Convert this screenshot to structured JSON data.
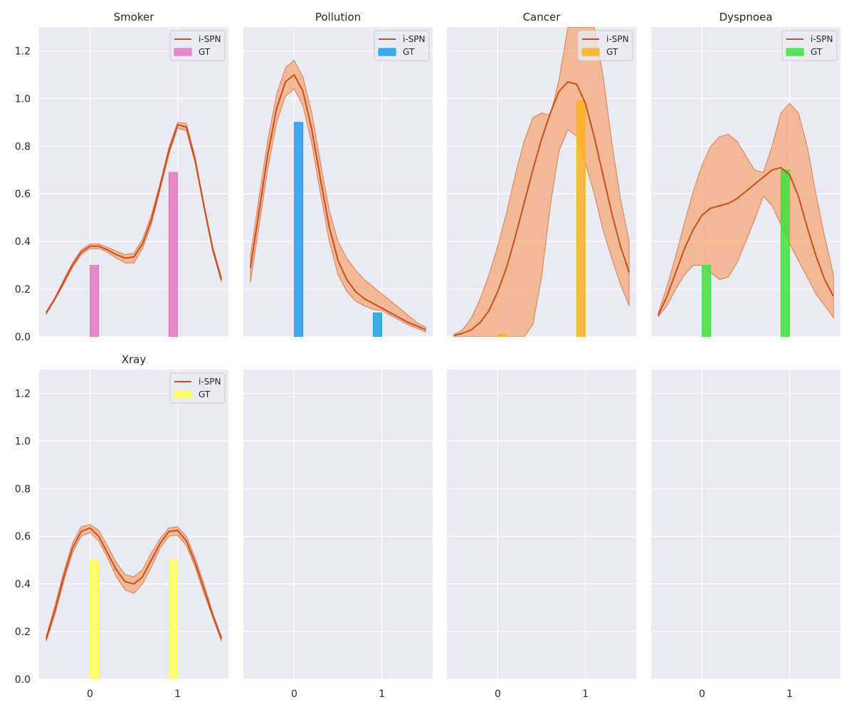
{
  "chart_data": {
    "type": "line",
    "layout": "2x4 grid, shared x and y axes",
    "xlim": [
      -0.58,
      1.58
    ],
    "ylim": [
      0,
      1.3
    ],
    "x_ticks": [
      0,
      1
    ],
    "x_tick_labels": [
      "0",
      "1"
    ],
    "y_ticks": [
      0,
      0.2,
      0.4,
      0.6,
      0.8,
      1.0,
      1.2
    ],
    "y_tick_labels": [
      "0.0",
      "0.2",
      "0.4",
      "0.6",
      "0.8",
      "1.0",
      "1.2"
    ],
    "grid": true,
    "legend_placement": "top-right",
    "line_color": "#cc4c1e",
    "band_color": "#f4a46e",
    "panels": [
      {
        "title": "Smoker",
        "series": [
          {
            "name": "i-SPN",
            "type": "line",
            "x": [
              -0.5,
              -0.4,
              -0.3,
              -0.2,
              -0.1,
              0.0,
              0.1,
              0.2,
              0.3,
              0.4,
              0.5,
              0.6,
              0.7,
              0.8,
              0.9,
              1.0,
              1.1,
              1.2,
              1.3,
              1.4,
              1.5
            ],
            "y": [
              0.1,
              0.16,
              0.23,
              0.3,
              0.355,
              0.38,
              0.38,
              0.365,
              0.345,
              0.33,
              0.335,
              0.39,
              0.49,
              0.63,
              0.78,
              0.89,
              0.88,
              0.74,
              0.55,
              0.37,
              0.24
            ],
            "lower": [
              0.095,
              0.155,
              0.22,
              0.29,
              0.345,
              0.37,
              0.37,
              0.355,
              0.33,
              0.31,
              0.31,
              0.37,
              0.47,
              0.615,
              0.765,
              0.875,
              0.865,
              0.73,
              0.54,
              0.36,
              0.23
            ],
            "upper": [
              0.105,
              0.165,
              0.24,
              0.31,
              0.365,
              0.39,
              0.39,
              0.375,
              0.36,
              0.345,
              0.35,
              0.41,
              0.51,
              0.645,
              0.795,
              0.9,
              0.895,
              0.755,
              0.56,
              0.38,
              0.25
            ]
          },
          {
            "name": "GT",
            "type": "bar",
            "color": "#e377c2",
            "x": [
              0.05,
              0.95
            ],
            "values": [
              0.3,
              0.69
            ]
          }
        ]
      },
      {
        "title": "Pollution",
        "series": [
          {
            "name": "i-SPN",
            "type": "line",
            "x": [
              -0.5,
              -0.4,
              -0.3,
              -0.2,
              -0.1,
              0.0,
              0.1,
              0.2,
              0.3,
              0.4,
              0.5,
              0.6,
              0.7,
              0.8,
              0.9,
              1.0,
              1.1,
              1.2,
              1.3,
              1.4,
              1.5
            ],
            "y": [
              0.29,
              0.53,
              0.77,
              0.96,
              1.07,
              1.1,
              1.03,
              0.87,
              0.66,
              0.46,
              0.32,
              0.24,
              0.19,
              0.16,
              0.14,
              0.12,
              0.1,
              0.08,
              0.06,
              0.045,
              0.03
            ],
            "lower": [
              0.23,
              0.47,
              0.71,
              0.9,
              1.01,
              1.04,
              0.97,
              0.81,
              0.6,
              0.4,
              0.26,
              0.19,
              0.15,
              0.13,
              0.115,
              0.11,
              0.09,
              0.07,
              0.05,
              0.035,
              0.02
            ],
            "upper": [
              0.34,
              0.59,
              0.83,
              1.02,
              1.13,
              1.16,
              1.09,
              0.94,
              0.73,
              0.53,
              0.4,
              0.33,
              0.28,
              0.24,
              0.21,
              0.18,
              0.15,
              0.12,
              0.09,
              0.06,
              0.04
            ]
          },
          {
            "name": "GT",
            "type": "bar",
            "color": "#1f9fe8",
            "x": [
              0.05,
              0.95
            ],
            "values": [
              0.9,
              0.1
            ]
          }
        ]
      },
      {
        "title": "Cancer",
        "series": [
          {
            "name": "i-SPN",
            "type": "line",
            "x": [
              -0.5,
              -0.4,
              -0.3,
              -0.2,
              -0.1,
              0.0,
              0.1,
              0.2,
              0.3,
              0.4,
              0.5,
              0.6,
              0.7,
              0.8,
              0.9,
              1.0,
              1.1,
              1.2,
              1.3,
              1.4,
              1.5
            ],
            "y": [
              0.005,
              0.015,
              0.03,
              0.06,
              0.11,
              0.19,
              0.29,
              0.42,
              0.56,
              0.7,
              0.83,
              0.94,
              1.03,
              1.07,
              1.06,
              0.98,
              0.84,
              0.68,
              0.52,
              0.38,
              0.27
            ],
            "lower": [
              0.0,
              0.0,
              0.0,
              0.0,
              0.0,
              0.0,
              0.0,
              0.0,
              0.0,
              0.05,
              0.25,
              0.55,
              0.78,
              0.87,
              0.84,
              0.73,
              0.6,
              0.45,
              0.33,
              0.22,
              0.13
            ],
            "upper": [
              0.01,
              0.03,
              0.08,
              0.16,
              0.26,
              0.38,
              0.52,
              0.68,
              0.82,
              0.92,
              0.94,
              0.93,
              1.08,
              1.3,
              1.3,
              1.3,
              1.3,
              1.1,
              0.82,
              0.58,
              0.4
            ]
          },
          {
            "name": "GT",
            "type": "bar",
            "color": "#ffb020",
            "x": [
              0.05,
              0.95
            ],
            "values": [
              0.01,
              0.99
            ]
          }
        ]
      },
      {
        "title": "Dyspnoea",
        "series": [
          {
            "name": "i-SPN",
            "type": "line",
            "x": [
              -0.5,
              -0.4,
              -0.3,
              -0.2,
              -0.1,
              0.0,
              0.1,
              0.2,
              0.3,
              0.4,
              0.5,
              0.6,
              0.7,
              0.8,
              0.9,
              1.0,
              1.1,
              1.2,
              1.3,
              1.4,
              1.5
            ],
            "y": [
              0.09,
              0.17,
              0.27,
              0.37,
              0.45,
              0.51,
              0.54,
              0.55,
              0.56,
              0.58,
              0.61,
              0.64,
              0.67,
              0.7,
              0.71,
              0.68,
              0.59,
              0.46,
              0.34,
              0.24,
              0.17
            ],
            "lower": [
              0.085,
              0.13,
              0.2,
              0.26,
              0.3,
              0.3,
              0.27,
              0.24,
              0.25,
              0.31,
              0.4,
              0.49,
              0.59,
              0.55,
              0.47,
              0.39,
              0.32,
              0.25,
              0.18,
              0.13,
              0.08
            ],
            "upper": [
              0.1,
              0.21,
              0.34,
              0.48,
              0.61,
              0.72,
              0.8,
              0.84,
              0.85,
              0.82,
              0.76,
              0.7,
              0.69,
              0.8,
              0.94,
              0.98,
              0.94,
              0.8,
              0.6,
              0.42,
              0.26
            ]
          },
          {
            "name": "GT",
            "type": "bar",
            "color": "#3ee23e",
            "x": [
              0.05,
              0.95
            ],
            "values": [
              0.3,
              0.7
            ]
          }
        ]
      },
      {
        "title": "Xray",
        "series": [
          {
            "name": "i-SPN",
            "type": "line",
            "x": [
              -0.5,
              -0.4,
              -0.3,
              -0.2,
              -0.1,
              0.0,
              0.1,
              0.2,
              0.3,
              0.4,
              0.5,
              0.6,
              0.7,
              0.8,
              0.9,
              1.0,
              1.1,
              1.2,
              1.3,
              1.4,
              1.5
            ],
            "y": [
              0.17,
              0.29,
              0.43,
              0.55,
              0.62,
              0.635,
              0.6,
              0.53,
              0.46,
              0.41,
              0.4,
              0.43,
              0.5,
              0.57,
              0.62,
              0.625,
              0.58,
              0.49,
              0.38,
              0.27,
              0.17
            ],
            "lower": [
              0.16,
              0.27,
              0.41,
              0.53,
              0.6,
              0.615,
              0.58,
              0.51,
              0.43,
              0.375,
              0.36,
              0.4,
              0.47,
              0.55,
              0.6,
              0.605,
              0.56,
              0.47,
              0.36,
              0.26,
              0.16
            ],
            "upper": [
              0.18,
              0.31,
              0.45,
              0.57,
              0.64,
              0.65,
              0.625,
              0.56,
              0.49,
              0.44,
              0.43,
              0.46,
              0.53,
              0.59,
              0.635,
              0.64,
              0.6,
              0.51,
              0.4,
              0.28,
              0.18
            ]
          },
          {
            "name": "GT",
            "type": "bar",
            "color": "#ffff55",
            "x": [
              0.05,
              0.95
            ],
            "values": [
              0.5,
              0.5
            ]
          }
        ]
      },
      {
        "title": "",
        "series": []
      },
      {
        "title": "",
        "series": []
      },
      {
        "title": "",
        "series": []
      }
    ]
  }
}
